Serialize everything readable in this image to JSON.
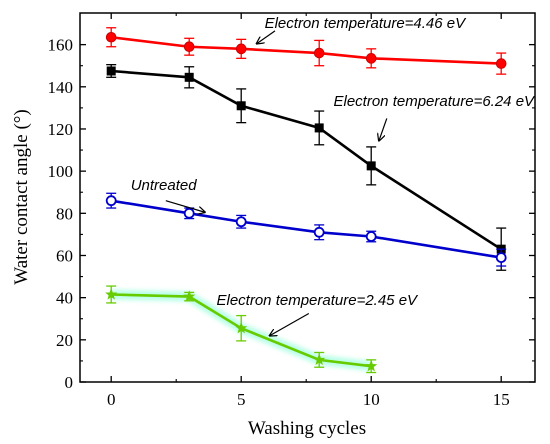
{
  "chart_data": {
    "type": "line",
    "xlabel": "Washing cycles",
    "ylabel": "Water contact angle (°)",
    "xlim": [
      -1.2,
      16.3
    ],
    "ylim": [
      0,
      175
    ],
    "xticks": [
      0,
      5,
      10,
      15
    ],
    "yticks": [
      0,
      20,
      40,
      60,
      80,
      100,
      120,
      140,
      160
    ],
    "grid": false,
    "series": [
      {
        "label_ref": "4.46",
        "color": "#ff0000",
        "marker": "circle-filled",
        "x": [
          0,
          3,
          5,
          8,
          10,
          15
        ],
        "y": [
          163.5,
          159,
          158,
          156,
          153.5,
          151
        ],
        "err": [
          4.5,
          4,
          4.5,
          6,
          4.5,
          5
        ]
      },
      {
        "label_ref": "6.24",
        "color": "#000000",
        "marker": "square-filled",
        "x": [
          0,
          3,
          5,
          8,
          10,
          15
        ],
        "y": [
          147.5,
          144.5,
          131,
          120.5,
          102.5,
          63
        ],
        "err": [
          3,
          5,
          8,
          8,
          9,
          10
        ]
      },
      {
        "label_ref": "untreated",
        "color": "#0000cc",
        "marker": "circle-open",
        "x": [
          0,
          3,
          5,
          8,
          10,
          15
        ],
        "y": [
          86,
          80,
          76,
          71,
          69,
          59
        ],
        "err": [
          3.5,
          2.5,
          3,
          3.5,
          2.5,
          4
        ]
      },
      {
        "label_ref": "2.45",
        "color": "#66cc00",
        "marker": "star",
        "x": [
          0,
          3,
          5,
          8,
          10
        ],
        "y": [
          41.5,
          40.5,
          25.5,
          10.5,
          7.5
        ],
        "err": [
          4,
          2,
          6,
          3.5,
          3
        ]
      }
    ],
    "annotations": [
      {
        "id": "4.46",
        "text": "Electron temperature=4.46 eV",
        "x": 5.9,
        "y": 168,
        "arrow_from": [
          6.3,
          166.5
        ],
        "arrow_to": [
          5.6,
          160.5
        ]
      },
      {
        "id": "6.24",
        "text": "Electron temperature=6.24 eV",
        "x": 8.55,
        "y": 131,
        "arrow_from": [
          10.6,
          125
        ],
        "arrow_to": [
          10.3,
          114.5
        ]
      },
      {
        "id": "untreated",
        "text": "Untreated",
        "x": 0.75,
        "y": 91,
        "arrow_from": [
          2.1,
          86
        ],
        "arrow_to": [
          3.6,
          80.5
        ]
      },
      {
        "id": "2.45",
        "text": "Electron temperature=2.45 eV",
        "x": 4.05,
        "y": 36.5,
        "arrow_from": [
          7.6,
          32.5
        ],
        "arrow_to": [
          6.1,
          22
        ]
      }
    ]
  }
}
